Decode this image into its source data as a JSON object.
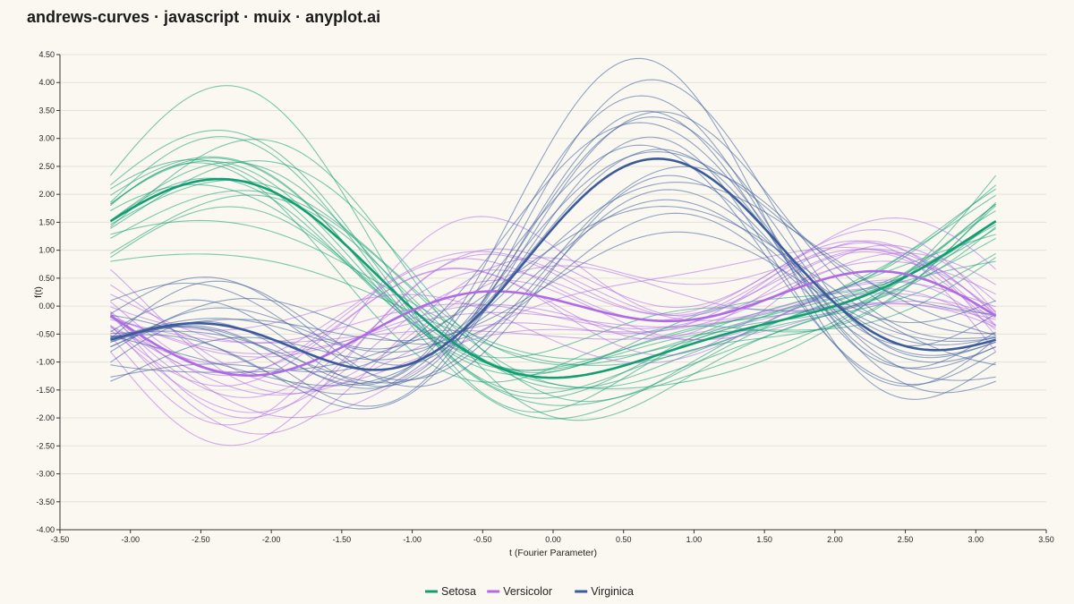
{
  "title": "andrews-curves · javascript · muix · anyplot.ai",
  "chart_data": {
    "type": "line",
    "title": "andrews-curves · javascript · muix · anyplot.ai",
    "xlabel": "t (Fourier Parameter)",
    "ylabel": "f(t)",
    "xlim": [
      -3.5,
      3.5
    ],
    "ylim": [
      -4.0,
      4.5
    ],
    "x_ticks": [
      "-3.50",
      "-3.00",
      "-2.50",
      "-2.00",
      "-1.50",
      "-1.00",
      "-0.50",
      "0.00",
      "0.50",
      "1.00",
      "1.50",
      "2.00",
      "2.50",
      "3.00",
      "3.50"
    ],
    "y_ticks": [
      "-4.00",
      "-3.50",
      "-3.00",
      "-2.50",
      "-2.00",
      "-1.50",
      "-1.00",
      "-0.50",
      "0.00",
      "0.50",
      "1.00",
      "1.50",
      "2.00",
      "2.50",
      "3.00",
      "3.50",
      "4.00",
      "4.50"
    ],
    "t_range": [
      -3.14159,
      3.14159
    ],
    "grid": "horizontal",
    "legend_position": "bottom-center",
    "series": [
      {
        "name": "Setosa",
        "color": "#119e73",
        "mean_coefficients": [
          0.45,
          -0.8,
          -1.4,
          0.4,
          -0.2
        ],
        "individual_coefficients": [
          [
            0.45,
            -0.8,
            -1.4,
            0.4,
            -0.2
          ],
          [
            0.6,
            -0.7,
            -1.5,
            0.6,
            -0.1
          ],
          [
            0.3,
            -1.0,
            -1.3,
            0.2,
            -0.3
          ],
          [
            0.7,
            -0.6,
            -1.6,
            0.5,
            0.0
          ],
          [
            0.2,
            -0.9,
            -1.2,
            0.3,
            -0.4
          ],
          [
            0.5,
            -1.1,
            -1.7,
            0.7,
            -0.2
          ],
          [
            0.4,
            -0.5,
            -1.1,
            0.1,
            -0.1
          ],
          [
            0.8,
            -0.9,
            -1.9,
            0.6,
            -0.3
          ],
          [
            0.1,
            -0.7,
            -1.0,
            0.5,
            -0.2
          ],
          [
            0.55,
            -1.2,
            -1.5,
            0.2,
            -0.5
          ],
          [
            0.35,
            -0.6,
            -1.45,
            0.8,
            0.1
          ],
          [
            0.65,
            -0.85,
            -1.25,
            0.3,
            -0.25
          ],
          [
            0.25,
            -1.05,
            -1.8,
            0.45,
            -0.15
          ],
          [
            0.75,
            -0.75,
            -1.35,
            0.55,
            -0.35
          ],
          [
            0.15,
            -0.95,
            -1.55,
            0.25,
            0.05
          ],
          [
            0.9,
            -1.3,
            -2.1,
            0.9,
            -0.4
          ],
          [
            0.0,
            -0.4,
            -0.9,
            0.0,
            -0.1
          ],
          [
            0.45,
            -1.4,
            -1.7,
            0.35,
            -0.6
          ],
          [
            0.6,
            -0.55,
            -1.15,
            0.65,
            -0.05
          ],
          [
            0.4,
            -0.8,
            -2.0,
            0.4,
            -0.3
          ]
        ]
      },
      {
        "name": "Versicolor",
        "color": "#b06ae8",
        "mean_coefficients": [
          -0.25,
          0.5,
          0.15,
          -0.55,
          0.15
        ],
        "individual_coefficients": [
          [
            -0.25,
            0.5,
            0.15,
            -0.55,
            0.15
          ],
          [
            -0.1,
            0.7,
            0.3,
            -0.8,
            0.2
          ],
          [
            -0.4,
            0.3,
            0.0,
            -0.3,
            0.1
          ],
          [
            0.05,
            0.9,
            0.45,
            -1.0,
            0.3
          ],
          [
            -0.55,
            0.2,
            -0.15,
            -0.2,
            0.0
          ],
          [
            -0.2,
            1.2,
            0.6,
            -0.7,
            0.4
          ],
          [
            -0.3,
            -0.1,
            -0.3,
            -0.5,
            -0.1
          ],
          [
            0.1,
            0.6,
            0.8,
            -1.2,
            0.2
          ],
          [
            -0.45,
            0.8,
            -0.4,
            -0.4,
            0.3
          ],
          [
            -0.15,
            0.4,
            0.2,
            -0.9,
            -0.05
          ],
          [
            -0.35,
            1.4,
            0.1,
            -0.3,
            0.25
          ],
          [
            0.0,
            0.1,
            0.5,
            -0.6,
            0.15
          ],
          [
            -0.6,
            0.55,
            0.35,
            -0.75,
            0.35
          ],
          [
            -0.05,
            0.35,
            -0.2,
            -0.45,
            0.05
          ],
          [
            -0.3,
            0.95,
            0.7,
            -1.1,
            0.1
          ],
          [
            -0.5,
            0.15,
            0.05,
            -0.35,
            0.2
          ],
          [
            -0.2,
            1.0,
            -0.5,
            -0.65,
            0.3
          ],
          [
            0.15,
            0.45,
            0.25,
            -0.85,
            0.0
          ],
          [
            -0.4,
            0.65,
            0.55,
            -0.25,
            0.45
          ],
          [
            -0.1,
            0.25,
            -0.05,
            -0.95,
            0.1
          ]
        ]
      },
      {
        "name": "Virginica",
        "color": "#3b5b9b",
        "mean_coefficients": [
          0.35,
          1.1,
          1.0,
          0.9,
          0.15
        ],
        "individual_coefficients": [
          [
            0.35,
            1.1,
            1.0,
            0.9,
            0.15
          ],
          [
            0.5,
            1.4,
            1.3,
            1.1,
            0.3
          ],
          [
            0.2,
            0.8,
            0.7,
            0.7,
            0.0
          ],
          [
            0.65,
            1.7,
            1.5,
            1.3,
            0.4
          ],
          [
            0.05,
            0.6,
            0.5,
            0.5,
            -0.1
          ],
          [
            0.4,
            1.2,
            1.8,
            0.8,
            0.25
          ],
          [
            0.3,
            0.9,
            0.4,
            1.2,
            0.05
          ],
          [
            0.55,
            1.6,
            0.9,
            0.6,
            0.35
          ],
          [
            0.15,
            1.0,
            1.4,
            1.0,
            -0.05
          ],
          [
            0.45,
            0.7,
            1.1,
            1.4,
            0.2
          ],
          [
            0.25,
            1.5,
            0.8,
            0.4,
            0.1
          ],
          [
            0.6,
            1.3,
            1.6,
            1.2,
            0.45
          ],
          [
            0.1,
            0.5,
            0.6,
            0.8,
            -0.2
          ],
          [
            0.5,
            1.8,
            1.2,
            1.0,
            0.3
          ],
          [
            0.35,
            0.95,
            0.3,
            0.95,
            0.15
          ],
          [
            0.7,
            1.25,
            2.0,
            1.5,
            0.5
          ],
          [
            0.0,
            1.05,
            1.05,
            0.3,
            0.0
          ],
          [
            0.4,
            0.65,
            1.35,
            1.1,
            0.25
          ],
          [
            0.3,
            1.45,
            0.65,
            0.75,
            -0.05
          ],
          [
            0.55,
            1.15,
            1.25,
            1.35,
            0.4
          ]
        ]
      }
    ]
  }
}
